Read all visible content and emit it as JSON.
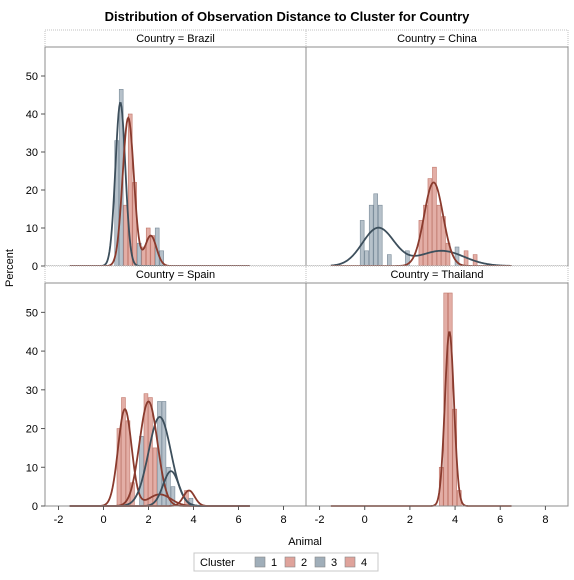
{
  "chart_data": {
    "type": "histogram-panel",
    "title": "Distribution of Observation Distance to Cluster for Country",
    "xlabel": "Animal",
    "ylabel": "Percent",
    "xlim": [
      -2.6,
      9.0
    ],
    "ylim": [
      0,
      55
    ],
    "xticks": [
      -2,
      0,
      2,
      4,
      6,
      8
    ],
    "yticks": [
      0,
      10,
      20,
      30,
      40,
      50
    ],
    "legend": {
      "title": "Cluster",
      "placement": "bottom",
      "items": [
        {
          "label": "1",
          "color": "#8fa0ad"
        },
        {
          "label": "2",
          "color": "#d9938a"
        },
        {
          "label": "3",
          "color": "#8fa0ad"
        },
        {
          "label": "4",
          "color": "#d9938a"
        }
      ]
    },
    "colors": {
      "blue_fill": "#8fa0ad",
      "red_fill": "#d48276",
      "blue_line": "#3d4f5c",
      "red_line": "#8a3b2e"
    },
    "panels": [
      {
        "label": "Country = Brazil",
        "bars": [
          {
            "x": 0.5,
            "w": 0.2,
            "y": 33,
            "c": "b"
          },
          {
            "x": 0.7,
            "w": 0.2,
            "y": 46.5,
            "c": "b"
          },
          {
            "x": 0.9,
            "w": 0.2,
            "y": 16,
            "c": "r"
          },
          {
            "x": 1.1,
            "w": 0.2,
            "y": 40,
            "c": "r"
          },
          {
            "x": 1.3,
            "w": 0.2,
            "y": 22,
            "c": "r"
          },
          {
            "x": 1.5,
            "w": 0.2,
            "y": 6,
            "c": "b"
          },
          {
            "x": 1.7,
            "w": 0.2,
            "y": 5,
            "c": "r"
          },
          {
            "x": 1.9,
            "w": 0.2,
            "y": 10,
            "c": "r"
          },
          {
            "x": 2.1,
            "w": 0.2,
            "y": 8,
            "c": "r"
          },
          {
            "x": 2.3,
            "w": 0.2,
            "y": 10,
            "c": "b"
          },
          {
            "x": 2.5,
            "w": 0.2,
            "y": 4,
            "c": "b"
          }
        ],
        "curves": [
          {
            "c": "b",
            "comps": [
              {
                "m": 0.75,
                "s": 0.22,
                "a": 43
              }
            ]
          },
          {
            "c": "r",
            "comps": [
              {
                "m": 1.1,
                "s": 0.25,
                "a": 39
              },
              {
                "m": 2.1,
                "s": 0.25,
                "a": 8
              }
            ]
          }
        ]
      },
      {
        "label": "Country = China",
        "bars": [
          {
            "x": -0.2,
            "w": 0.2,
            "y": 12,
            "c": "b"
          },
          {
            "x": 0.0,
            "w": 0.2,
            "y": 4,
            "c": "b"
          },
          {
            "x": 0.2,
            "w": 0.2,
            "y": 16,
            "c": "b"
          },
          {
            "x": 0.4,
            "w": 0.2,
            "y": 19,
            "c": "b"
          },
          {
            "x": 0.6,
            "w": 0.2,
            "y": 16,
            "c": "b"
          },
          {
            "x": 1.0,
            "w": 0.2,
            "y": 3,
            "c": "b"
          },
          {
            "x": 1.8,
            "w": 0.2,
            "y": 4,
            "c": "b"
          },
          {
            "x": 2.4,
            "w": 0.2,
            "y": 12,
            "c": "r"
          },
          {
            "x": 2.6,
            "w": 0.2,
            "y": 16,
            "c": "r"
          },
          {
            "x": 2.8,
            "w": 0.2,
            "y": 23,
            "c": "r"
          },
          {
            "x": 3.0,
            "w": 0.2,
            "y": 26,
            "c": "r"
          },
          {
            "x": 3.2,
            "w": 0.2,
            "y": 16,
            "c": "r"
          },
          {
            "x": 3.4,
            "w": 0.2,
            "y": 13,
            "c": "r"
          },
          {
            "x": 3.6,
            "w": 0.2,
            "y": 6,
            "c": "r"
          },
          {
            "x": 4.0,
            "w": 0.2,
            "y": 5,
            "c": "b"
          },
          {
            "x": 4.4,
            "w": 0.2,
            "y": 4,
            "c": "r"
          },
          {
            "x": 4.8,
            "w": 0.2,
            "y": 3,
            "c": "r"
          }
        ],
        "curves": [
          {
            "c": "b",
            "comps": [
              {
                "m": 0.6,
                "s": 0.7,
                "a": 10
              },
              {
                "m": 3.4,
                "s": 1.0,
                "a": 4
              }
            ]
          },
          {
            "c": "r",
            "comps": [
              {
                "m": 3.05,
                "s": 0.42,
                "a": 22
              }
            ]
          }
        ]
      },
      {
        "label": "Country = Spain",
        "bars": [
          {
            "x": 0.6,
            "w": 0.2,
            "y": 20,
            "c": "r"
          },
          {
            "x": 0.8,
            "w": 0.2,
            "y": 28,
            "c": "r"
          },
          {
            "x": 1.0,
            "w": 0.2,
            "y": 22,
            "c": "r"
          },
          {
            "x": 1.2,
            "w": 0.2,
            "y": 6,
            "c": "r"
          },
          {
            "x": 1.6,
            "w": 0.2,
            "y": 18,
            "c": "b"
          },
          {
            "x": 1.8,
            "w": 0.2,
            "y": 29,
            "c": "r"
          },
          {
            "x": 2.0,
            "w": 0.2,
            "y": 28,
            "c": "r"
          },
          {
            "x": 2.2,
            "w": 0.2,
            "y": 15,
            "c": "r"
          },
          {
            "x": 2.4,
            "w": 0.2,
            "y": 27,
            "c": "b"
          },
          {
            "x": 2.6,
            "w": 0.2,
            "y": 27,
            "c": "b"
          },
          {
            "x": 2.8,
            "w": 0.2,
            "y": 10,
            "c": "b"
          },
          {
            "x": 3.0,
            "w": 0.2,
            "y": 5,
            "c": "b"
          },
          {
            "x": 3.6,
            "w": 0.2,
            "y": 4,
            "c": "r"
          },
          {
            "x": 3.8,
            "w": 0.2,
            "y": 2,
            "c": "b"
          }
        ],
        "curves": [
          {
            "c": "r",
            "comps": [
              {
                "m": 0.95,
                "s": 0.3,
                "a": 25
              },
              {
                "m": 2.5,
                "s": 0.5,
                "a": 3
              }
            ]
          },
          {
            "c": "b",
            "comps": [
              {
                "m": 2.5,
                "s": 0.5,
                "a": 23
              }
            ]
          },
          {
            "c": "r",
            "comps": [
              {
                "m": 2.0,
                "s": 0.4,
                "a": 27
              }
            ]
          },
          {
            "c": "b",
            "comps": [
              {
                "m": 3.0,
                "s": 0.35,
                "a": 9
              }
            ]
          },
          {
            "c": "r",
            "comps": [
              {
                "m": 3.8,
                "s": 0.25,
                "a": 4
              }
            ]
          }
        ]
      },
      {
        "label": "Country = Thailand",
        "bars": [
          {
            "x": 3.3,
            "w": 0.2,
            "y": 10,
            "c": "r"
          },
          {
            "x": 3.5,
            "w": 0.2,
            "y": 55,
            "c": "r"
          },
          {
            "x": 3.7,
            "w": 0.2,
            "y": 55,
            "c": "r"
          },
          {
            "x": 3.9,
            "w": 0.2,
            "y": 25,
            "c": "r"
          },
          {
            "x": 4.1,
            "w": 0.2,
            "y": 4,
            "c": "r"
          }
        ],
        "curves": [
          {
            "c": "r",
            "comps": [
              {
                "m": 3.75,
                "s": 0.2,
                "a": 45
              }
            ]
          }
        ]
      }
    ]
  }
}
